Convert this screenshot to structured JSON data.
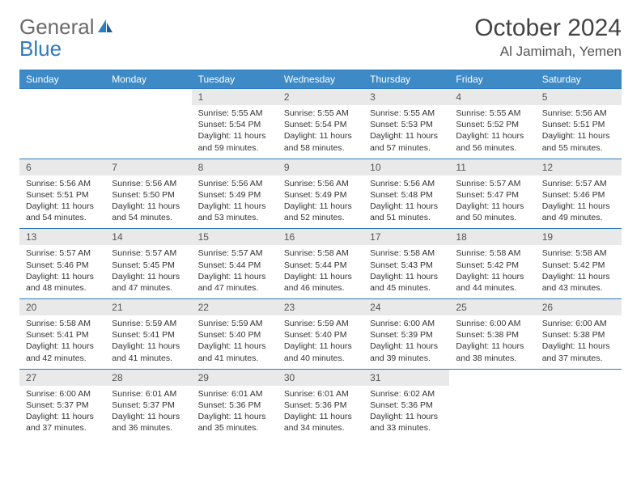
{
  "logo": {
    "text1": "General",
    "text2": "Blue"
  },
  "title": "October 2024",
  "location": "Al Jamimah, Yemen",
  "colors": {
    "header_bg": "#3d8ac7",
    "border": "#2f7bbf",
    "daynum_bg": "#e9e9e9",
    "text": "#333333",
    "logo_gray": "#6a6a6a",
    "logo_blue": "#2f7bbf"
  },
  "weekdays": [
    "Sunday",
    "Monday",
    "Tuesday",
    "Wednesday",
    "Thursday",
    "Friday",
    "Saturday"
  ],
  "weeks": [
    [
      {
        "num": "",
        "lines": []
      },
      {
        "num": "",
        "lines": []
      },
      {
        "num": "1",
        "lines": [
          "Sunrise: 5:55 AM",
          "Sunset: 5:54 PM",
          "Daylight: 11 hours",
          "and 59 minutes."
        ]
      },
      {
        "num": "2",
        "lines": [
          "Sunrise: 5:55 AM",
          "Sunset: 5:54 PM",
          "Daylight: 11 hours",
          "and 58 minutes."
        ]
      },
      {
        "num": "3",
        "lines": [
          "Sunrise: 5:55 AM",
          "Sunset: 5:53 PM",
          "Daylight: 11 hours",
          "and 57 minutes."
        ]
      },
      {
        "num": "4",
        "lines": [
          "Sunrise: 5:55 AM",
          "Sunset: 5:52 PM",
          "Daylight: 11 hours",
          "and 56 minutes."
        ]
      },
      {
        "num": "5",
        "lines": [
          "Sunrise: 5:56 AM",
          "Sunset: 5:51 PM",
          "Daylight: 11 hours",
          "and 55 minutes."
        ]
      }
    ],
    [
      {
        "num": "6",
        "lines": [
          "Sunrise: 5:56 AM",
          "Sunset: 5:51 PM",
          "Daylight: 11 hours",
          "and 54 minutes."
        ]
      },
      {
        "num": "7",
        "lines": [
          "Sunrise: 5:56 AM",
          "Sunset: 5:50 PM",
          "Daylight: 11 hours",
          "and 54 minutes."
        ]
      },
      {
        "num": "8",
        "lines": [
          "Sunrise: 5:56 AM",
          "Sunset: 5:49 PM",
          "Daylight: 11 hours",
          "and 53 minutes."
        ]
      },
      {
        "num": "9",
        "lines": [
          "Sunrise: 5:56 AM",
          "Sunset: 5:49 PM",
          "Daylight: 11 hours",
          "and 52 minutes."
        ]
      },
      {
        "num": "10",
        "lines": [
          "Sunrise: 5:56 AM",
          "Sunset: 5:48 PM",
          "Daylight: 11 hours",
          "and 51 minutes."
        ]
      },
      {
        "num": "11",
        "lines": [
          "Sunrise: 5:57 AM",
          "Sunset: 5:47 PM",
          "Daylight: 11 hours",
          "and 50 minutes."
        ]
      },
      {
        "num": "12",
        "lines": [
          "Sunrise: 5:57 AM",
          "Sunset: 5:46 PM",
          "Daylight: 11 hours",
          "and 49 minutes."
        ]
      }
    ],
    [
      {
        "num": "13",
        "lines": [
          "Sunrise: 5:57 AM",
          "Sunset: 5:46 PM",
          "Daylight: 11 hours",
          "and 48 minutes."
        ]
      },
      {
        "num": "14",
        "lines": [
          "Sunrise: 5:57 AM",
          "Sunset: 5:45 PM",
          "Daylight: 11 hours",
          "and 47 minutes."
        ]
      },
      {
        "num": "15",
        "lines": [
          "Sunrise: 5:57 AM",
          "Sunset: 5:44 PM",
          "Daylight: 11 hours",
          "and 47 minutes."
        ]
      },
      {
        "num": "16",
        "lines": [
          "Sunrise: 5:58 AM",
          "Sunset: 5:44 PM",
          "Daylight: 11 hours",
          "and 46 minutes."
        ]
      },
      {
        "num": "17",
        "lines": [
          "Sunrise: 5:58 AM",
          "Sunset: 5:43 PM",
          "Daylight: 11 hours",
          "and 45 minutes."
        ]
      },
      {
        "num": "18",
        "lines": [
          "Sunrise: 5:58 AM",
          "Sunset: 5:42 PM",
          "Daylight: 11 hours",
          "and 44 minutes."
        ]
      },
      {
        "num": "19",
        "lines": [
          "Sunrise: 5:58 AM",
          "Sunset: 5:42 PM",
          "Daylight: 11 hours",
          "and 43 minutes."
        ]
      }
    ],
    [
      {
        "num": "20",
        "lines": [
          "Sunrise: 5:58 AM",
          "Sunset: 5:41 PM",
          "Daylight: 11 hours",
          "and 42 minutes."
        ]
      },
      {
        "num": "21",
        "lines": [
          "Sunrise: 5:59 AM",
          "Sunset: 5:41 PM",
          "Daylight: 11 hours",
          "and 41 minutes."
        ]
      },
      {
        "num": "22",
        "lines": [
          "Sunrise: 5:59 AM",
          "Sunset: 5:40 PM",
          "Daylight: 11 hours",
          "and 41 minutes."
        ]
      },
      {
        "num": "23",
        "lines": [
          "Sunrise: 5:59 AM",
          "Sunset: 5:40 PM",
          "Daylight: 11 hours",
          "and 40 minutes."
        ]
      },
      {
        "num": "24",
        "lines": [
          "Sunrise: 6:00 AM",
          "Sunset: 5:39 PM",
          "Daylight: 11 hours",
          "and 39 minutes."
        ]
      },
      {
        "num": "25",
        "lines": [
          "Sunrise: 6:00 AM",
          "Sunset: 5:38 PM",
          "Daylight: 11 hours",
          "and 38 minutes."
        ]
      },
      {
        "num": "26",
        "lines": [
          "Sunrise: 6:00 AM",
          "Sunset: 5:38 PM",
          "Daylight: 11 hours",
          "and 37 minutes."
        ]
      }
    ],
    [
      {
        "num": "27",
        "lines": [
          "Sunrise: 6:00 AM",
          "Sunset: 5:37 PM",
          "Daylight: 11 hours",
          "and 37 minutes."
        ]
      },
      {
        "num": "28",
        "lines": [
          "Sunrise: 6:01 AM",
          "Sunset: 5:37 PM",
          "Daylight: 11 hours",
          "and 36 minutes."
        ]
      },
      {
        "num": "29",
        "lines": [
          "Sunrise: 6:01 AM",
          "Sunset: 5:36 PM",
          "Daylight: 11 hours",
          "and 35 minutes."
        ]
      },
      {
        "num": "30",
        "lines": [
          "Sunrise: 6:01 AM",
          "Sunset: 5:36 PM",
          "Daylight: 11 hours",
          "and 34 minutes."
        ]
      },
      {
        "num": "31",
        "lines": [
          "Sunrise: 6:02 AM",
          "Sunset: 5:36 PM",
          "Daylight: 11 hours",
          "and 33 minutes."
        ]
      },
      {
        "num": "",
        "lines": []
      },
      {
        "num": "",
        "lines": []
      }
    ]
  ]
}
